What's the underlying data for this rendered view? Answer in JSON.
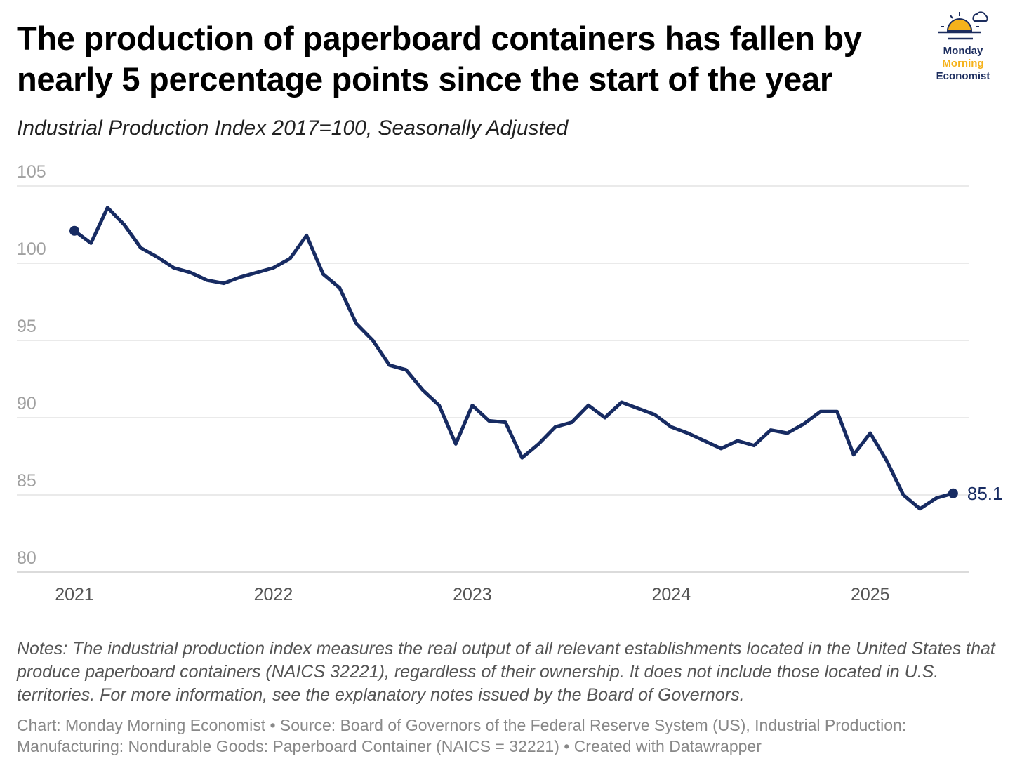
{
  "title": "The production of paperboard containers has fallen by nearly 5 percentage points since the start of the year",
  "subtitle": "Industrial Production Index 2017=100, Seasonally Adjusted",
  "logo": {
    "line1": "Monday",
    "line2": "Morning",
    "line3": "Economist",
    "colors": {
      "navy": "#1c2d5e",
      "gold": "#f5b21b"
    }
  },
  "chart_data": {
    "type": "line",
    "title": "The production of paperboard containers has fallen by nearly 5 percentage points since the start of the year",
    "subtitle": "Industrial Production Index 2017=100, Seasonally Adjusted",
    "xlabel": "",
    "ylabel": "",
    "ylim": [
      80,
      105
    ],
    "yticks": [
      80,
      85,
      90,
      95,
      100,
      105
    ],
    "xticks": [
      {
        "label": "2021",
        "index": 0
      },
      {
        "label": "2022",
        "index": 12
      },
      {
        "label": "2023",
        "index": 24
      },
      {
        "label": "2024",
        "index": 36
      },
      {
        "label": "2025",
        "index": 48
      }
    ],
    "x_start": "2021-01",
    "x_frequency": "monthly",
    "grid": true,
    "series": [
      {
        "name": "Paperboard Container IP Index",
        "color": "#172b62",
        "end_label": "85.1",
        "values": [
          102.1,
          101.3,
          103.6,
          102.5,
          101.0,
          100.4,
          99.7,
          99.4,
          98.9,
          98.7,
          99.1,
          99.4,
          99.7,
          100.3,
          101.8,
          99.3,
          98.4,
          96.1,
          95.0,
          93.4,
          93.1,
          91.8,
          90.8,
          88.3,
          90.8,
          89.8,
          89.7,
          87.4,
          88.3,
          89.4,
          89.7,
          90.8,
          90.0,
          91.0,
          90.6,
          90.2,
          89.4,
          89.0,
          88.5,
          88.0,
          88.5,
          88.2,
          89.2,
          89.0,
          89.6,
          90.4,
          90.4,
          87.6,
          89.0,
          87.2,
          85.0,
          84.1,
          84.8,
          85.1
        ]
      }
    ]
  },
  "notes": "Notes: The industrial production index measures the real output of all relevant establishments located in the United States that produce paperboard containers (NAICS 32221), regardless of their ownership. It does not include those located in U.S. territories. For more information, see the explanatory notes issued by the Board of Governors.",
  "source": "Chart: Monday Morning Economist • Source: Board of Governors of the Federal Reserve System (US), Industrial Production: Manufacturing: Nondurable Goods: Paperboard Container (NAICS = 32221) • Created with Datawrapper"
}
